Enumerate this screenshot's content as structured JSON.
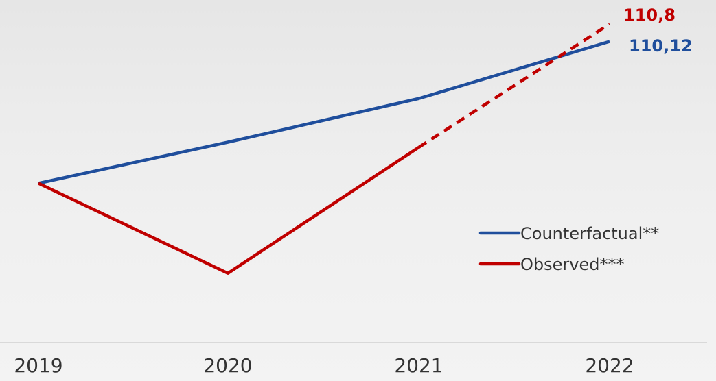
{
  "chart_data": {
    "type": "line",
    "title": "",
    "xlabel": "",
    "ylabel": "",
    "categories": [
      "2019",
      "2020",
      "2021",
      "2022"
    ],
    "ylim": [
      98.8,
      111.2
    ],
    "grid": false,
    "legend_position": "right",
    "series": [
      {
        "name": "Counterfactual**",
        "color": "#1f4e9c",
        "style": "solid",
        "values": [
          104.6,
          106.2,
          107.9,
          110.12
        ],
        "end_label": "110,12"
      },
      {
        "name": "Observed***",
        "color": "#c00000",
        "style": "solid-then-dashed",
        "dashed_from_index": 2,
        "values": [
          104.6,
          101.1,
          106.0,
          110.8
        ],
        "end_label": "110,8"
      }
    ]
  }
}
